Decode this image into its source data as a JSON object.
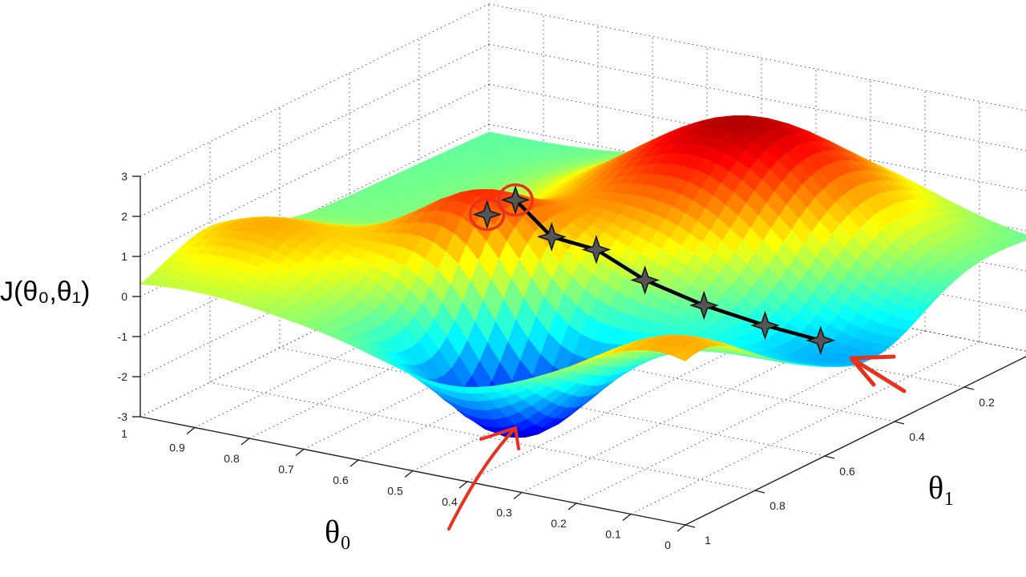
{
  "chart_data": {
    "type": "surface3d",
    "title": "",
    "xlabel": "θ₀",
    "ylabel": "θ₁",
    "zlabel": "J(θ₀,θ₁)",
    "xlim": [
      0,
      1
    ],
    "ylim": [
      0,
      1
    ],
    "zlim": [
      -3,
      3
    ],
    "x_ticks": [
      "0",
      "0.1",
      "0.2",
      "0.3",
      "0.4",
      "0.5",
      "0.6",
      "0.7",
      "0.8",
      "0.9",
      "1"
    ],
    "y_ticks": [
      "0.2",
      "0.4",
      "0.6",
      "0.8",
      "1"
    ],
    "z_ticks": [
      "-3",
      "-2",
      "-1",
      "0",
      "1",
      "2",
      "3"
    ],
    "grid": true,
    "colormap": "jet",
    "surface_features": [
      {
        "kind": "peak",
        "theta0": 0.38,
        "theta1": 0.24,
        "J": 3.0
      },
      {
        "kind": "peak",
        "theta0": 0.6,
        "theta1": 0.65,
        "J": 2.3
      },
      {
        "kind": "pit",
        "theta0": 0.44,
        "theta1": 0.8,
        "J": -3.0
      },
      {
        "kind": "bump",
        "theta0": 0.9,
        "theta1": 0.8,
        "J": 1.2
      },
      {
        "kind": "valley",
        "theta0": 0.1,
        "theta1": 0.45,
        "J": -1.5
      },
      {
        "kind": "ridge",
        "theta0": 0.05,
        "theta1": 0.95,
        "J": 1.3
      }
    ],
    "descent_path": [
      {
        "theta0": 0.53,
        "theta1": 0.74,
        "J": 2.2
      },
      {
        "theta0": 0.51,
        "theta1": 0.69,
        "J": 2.4
      },
      {
        "theta0": 0.45,
        "theta1": 0.68,
        "J": 1.6
      },
      {
        "theta0": 0.4,
        "theta1": 0.63,
        "J": 1.2
      },
      {
        "theta0": 0.33,
        "theta1": 0.6,
        "J": 0.5
      },
      {
        "theta0": 0.26,
        "theta1": 0.54,
        "J": -0.2
      },
      {
        "theta0": 0.18,
        "theta1": 0.49,
        "J": -0.7
      },
      {
        "theta0": 0.11,
        "theta1": 0.44,
        "J": -1.1
      }
    ],
    "annotations": {
      "circled_points": [
        0,
        1
      ],
      "arrows_to": [
        "pit",
        "path-end"
      ],
      "annotation_color": "#e8321e",
      "path_color": "#000000"
    }
  }
}
